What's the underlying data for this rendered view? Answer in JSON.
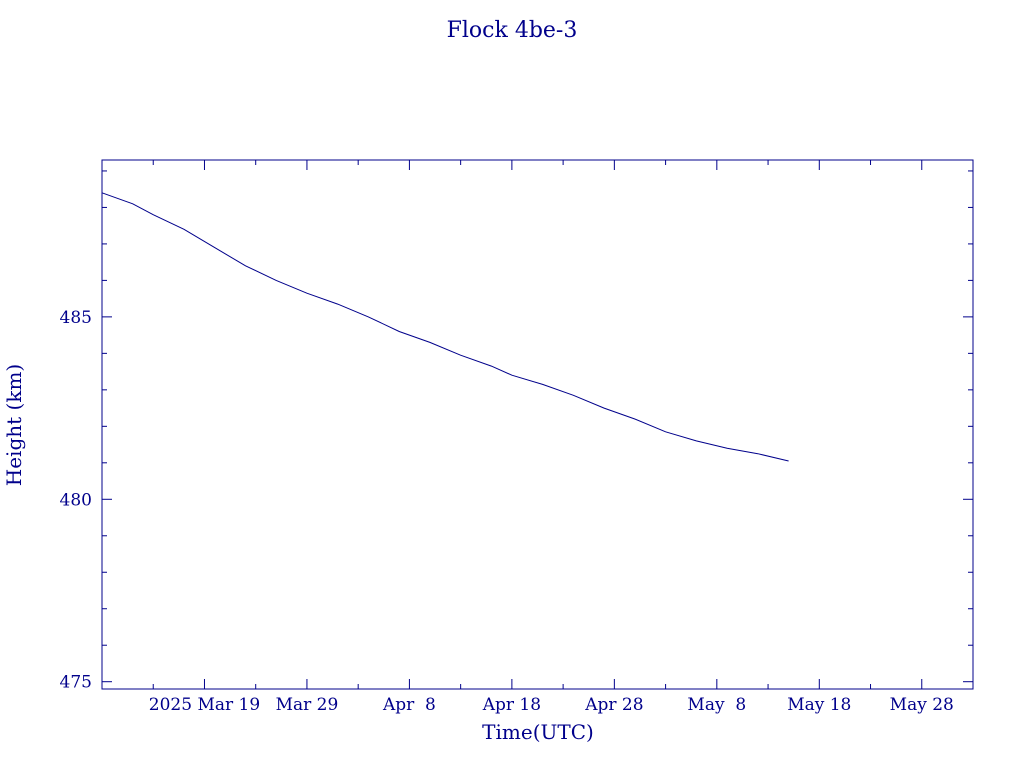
{
  "colors": {
    "ink": "#00008b",
    "background": "#ffffff"
  },
  "chart_data": {
    "type": "line",
    "title": "Flock 4be-3",
    "xlabel": "Time(UTC)",
    "ylabel": "Height (km)",
    "x_type": "date",
    "xlim": [
      "2025-03-09",
      "2025-06-02"
    ],
    "ylim": [
      474.8,
      489.3
    ],
    "x_ticks": [
      {
        "date": "2025-03-19",
        "label": "2025 Mar 19"
      },
      {
        "date": "2025-03-29",
        "label": "Mar 29"
      },
      {
        "date": "2025-04-08",
        "label": "Apr  8"
      },
      {
        "date": "2025-04-18",
        "label": "Apr 18"
      },
      {
        "date": "2025-04-28",
        "label": "Apr 28"
      },
      {
        "date": "2025-05-08",
        "label": "May  8"
      },
      {
        "date": "2025-05-18",
        "label": "May 18"
      },
      {
        "date": "2025-05-28",
        "label": "May 28"
      }
    ],
    "y_ticks": [
      475,
      480,
      485
    ],
    "grid": false,
    "series": [
      {
        "x": [
          "2025-03-09",
          "2025-03-12",
          "2025-03-14",
          "2025-03-17",
          "2025-03-20",
          "2025-03-23",
          "2025-03-26",
          "2025-03-29",
          "2025-04-01",
          "2025-04-04",
          "2025-04-07",
          "2025-04-10",
          "2025-04-13",
          "2025-04-16",
          "2025-04-18",
          "2025-04-21",
          "2025-04-24",
          "2025-04-27",
          "2025-04-30",
          "2025-05-03",
          "2025-05-06",
          "2025-05-09",
          "2025-05-12",
          "2025-05-15"
        ],
        "y": [
          488.4,
          488.1,
          487.8,
          487.4,
          486.9,
          486.4,
          486.0,
          485.65,
          485.35,
          485.0,
          484.6,
          484.3,
          483.95,
          483.65,
          483.4,
          483.15,
          482.85,
          482.5,
          482.2,
          481.85,
          481.6,
          481.4,
          481.25,
          481.05
        ]
      }
    ]
  }
}
